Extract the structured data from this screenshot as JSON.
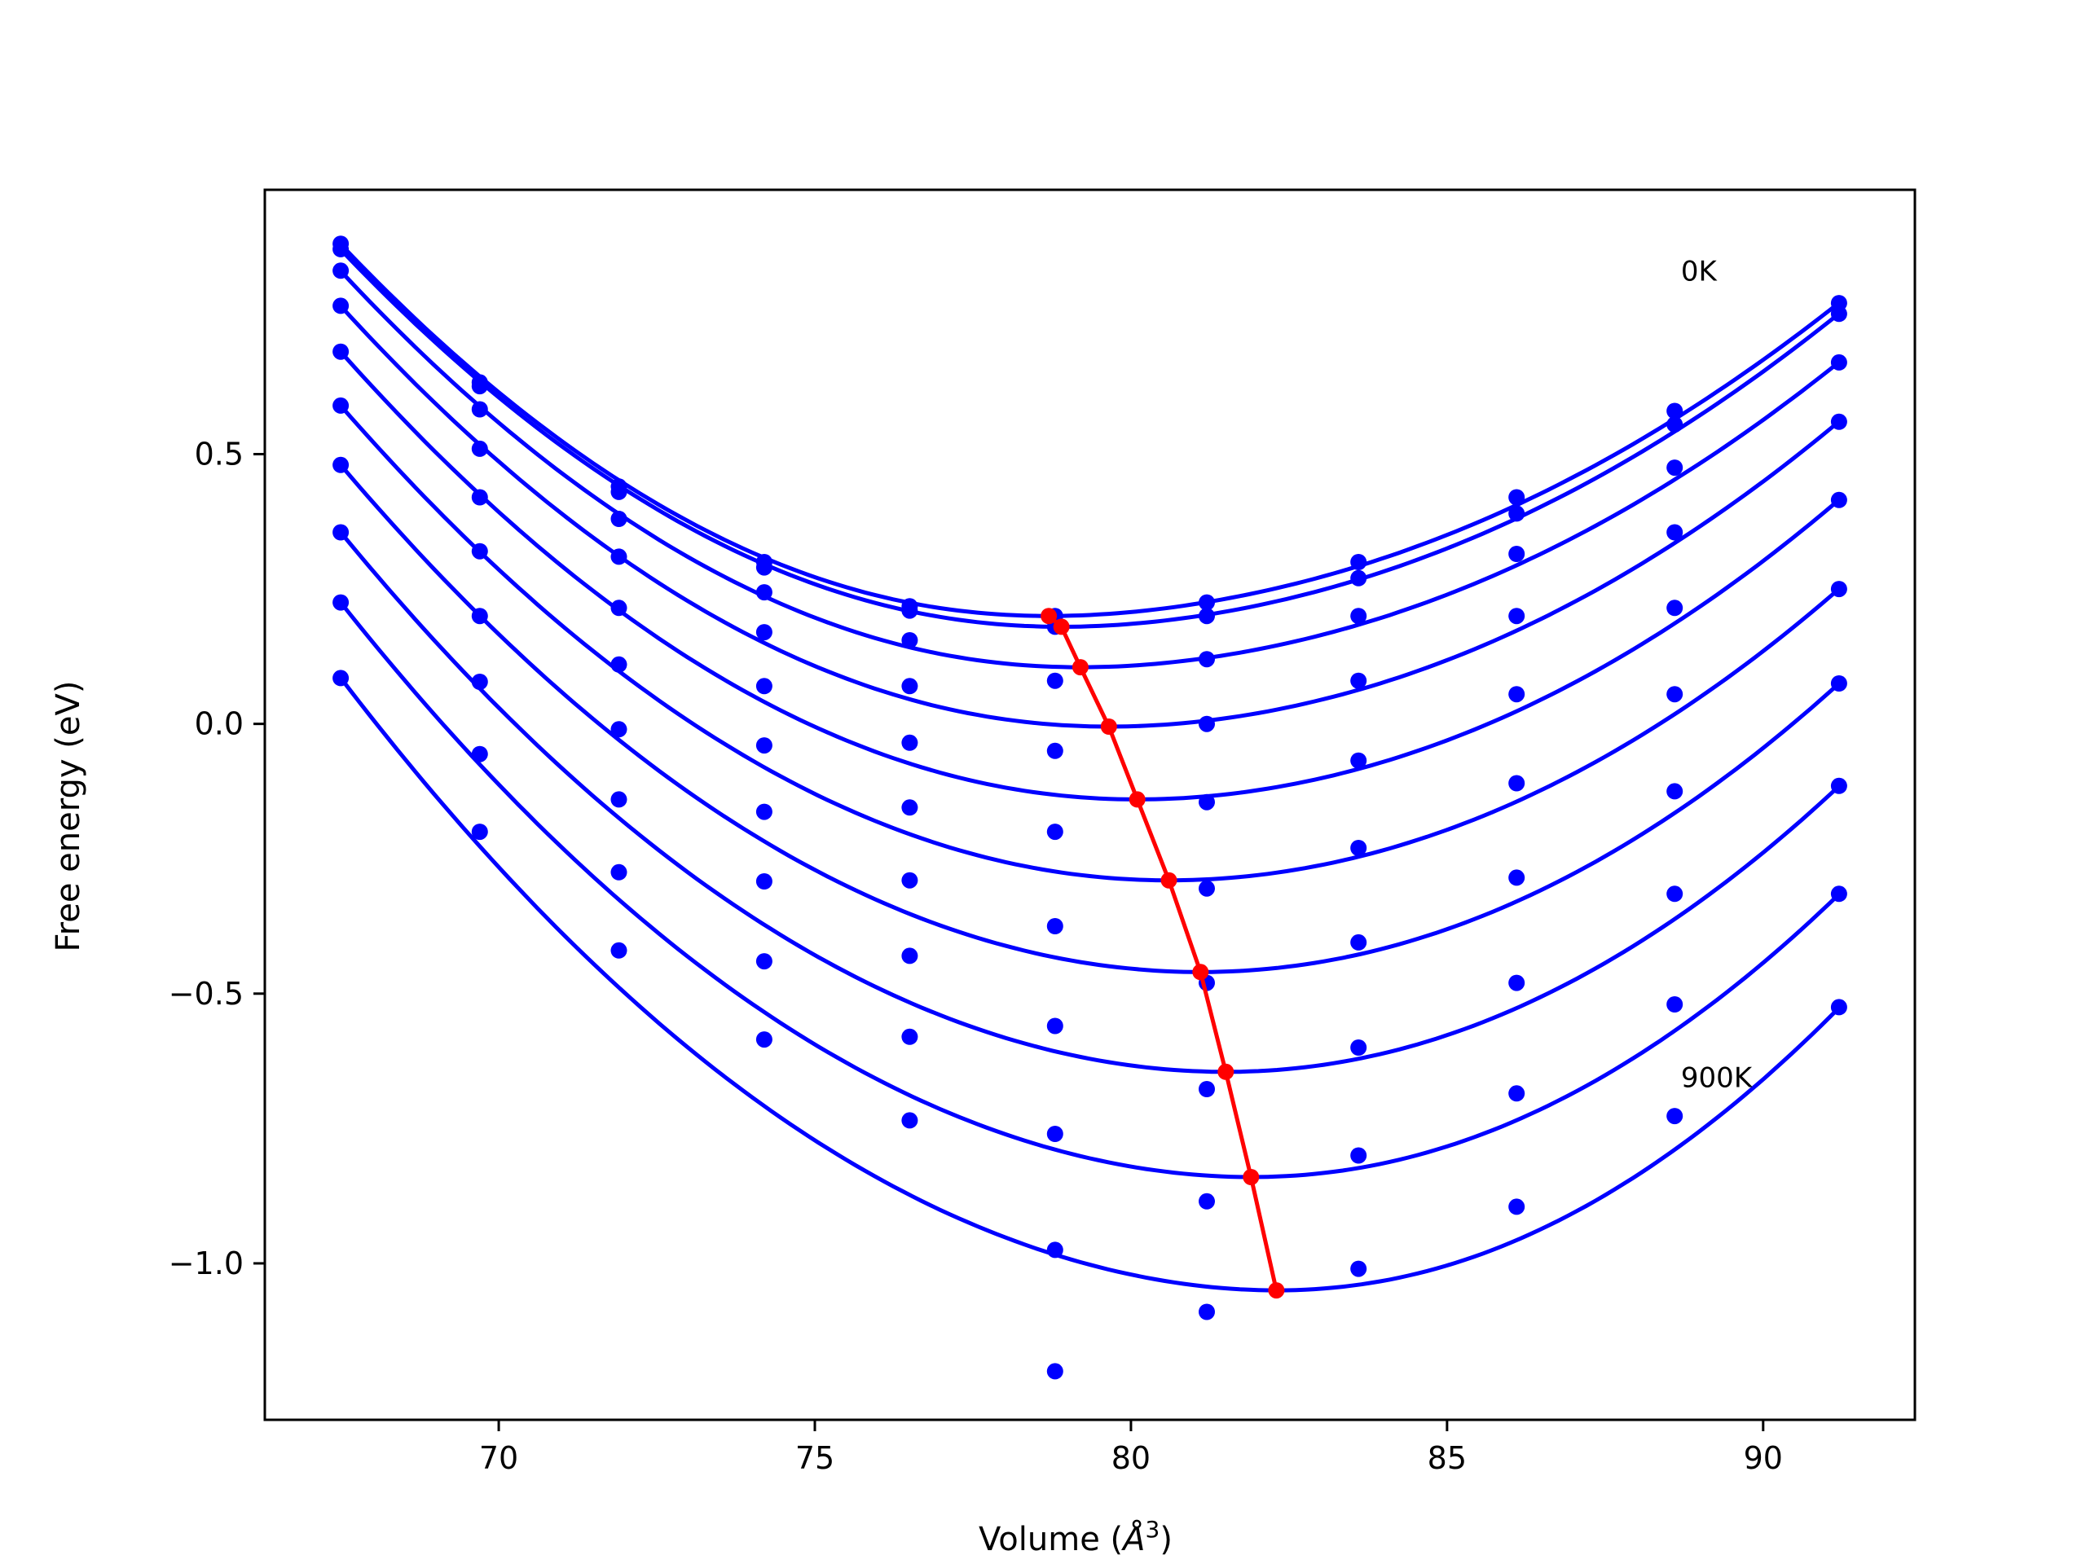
{
  "chart_data": {
    "type": "scatter",
    "title": "",
    "xlabel": "Volume (",
    "xlabel_symbol": "Å",
    "xlabel_superscript": "3",
    "xlabel_suffix": ")",
    "ylabel": "Free energy (eV)",
    "xlim": [
      66.3,
      92.4
    ],
    "ylim": [
      -1.29,
      0.99
    ],
    "xticks": [
      70,
      75,
      80,
      85,
      90
    ],
    "xtick_labels": [
      "70",
      "75",
      "80",
      "85",
      "90"
    ],
    "yticks": [
      0.5,
      0.0,
      -0.5,
      -1.0
    ],
    "ytick_labels": [
      "0.5",
      "0.0",
      "−0.5",
      "−1.0"
    ],
    "grid": false,
    "annotations": [
      {
        "text": "0K",
        "x": 88.7,
        "y": 0.84
      },
      {
        "text": "900K",
        "x": 88.7,
        "y": -0.655
      }
    ],
    "point_color": "#0000ff",
    "curve_color": "#0000ff",
    "equilibrium_color": "#ff0000",
    "volumes": [
      67.5,
      69.7,
      71.9,
      74.2,
      76.5,
      78.8,
      81.2,
      83.6,
      86.1,
      88.6,
      91.2
    ],
    "series": [
      {
        "points": [
          0.89,
          0.633,
          0.44,
          0.3,
          0.218,
          0.2,
          0.225,
          0.3,
          0.42,
          0.58,
          0.78
        ],
        "fit_min": [
          78.7,
          0.2
        ]
      },
      {
        "points": [
          0.88,
          0.626,
          0.43,
          0.29,
          0.21,
          0.18,
          0.2,
          0.27,
          0.39,
          0.555,
          0.76
        ],
        "fit_min": [
          78.9,
          0.18
        ]
      },
      {
        "points": [
          0.84,
          0.583,
          0.38,
          0.244,
          0.155,
          0.08,
          0.12,
          0.2,
          0.315,
          0.475,
          0.67
        ],
        "fit_min": [
          79.2,
          0.105
        ]
      },
      {
        "points": [
          0.775,
          0.51,
          0.31,
          0.17,
          0.07,
          -0.05,
          0.0,
          0.08,
          0.2,
          0.355,
          0.56
        ],
        "fit_min": [
          79.65,
          -0.005
        ]
      },
      {
        "points": [
          0.69,
          0.42,
          0.215,
          0.07,
          -0.035,
          -0.2,
          -0.145,
          -0.068,
          0.055,
          0.215,
          0.415
        ],
        "fit_min": [
          80.1,
          -0.14
        ]
      },
      {
        "points": [
          0.59,
          0.32,
          0.11,
          -0.04,
          -0.155,
          -0.375,
          -0.305,
          -0.23,
          -0.11,
          0.055,
          0.25
        ],
        "fit_min": [
          80.6,
          -0.29
        ]
      },
      {
        "points": [
          0.48,
          0.2,
          -0.01,
          -0.163,
          -0.29,
          -0.56,
          -0.48,
          -0.405,
          -0.285,
          -0.125,
          0.075
        ],
        "fit_min": [
          81.1,
          -0.46
        ]
      },
      {
        "points": [
          0.355,
          0.078,
          -0.14,
          -0.292,
          -0.43,
          -0.76,
          -0.677,
          -0.6,
          -0.48,
          -0.315,
          -0.115
        ],
        "fit_min": [
          81.5,
          -0.645
        ]
      },
      {
        "points": [
          0.225,
          -0.056,
          -0.275,
          -0.44,
          -0.58,
          -0.975,
          -0.885,
          -0.8,
          -0.685,
          -0.52,
          -0.315
        ],
        "fit_min": [
          81.9,
          -0.84
        ]
      },
      {
        "points": [
          0.085,
          -0.2,
          -0.42,
          -0.585,
          -0.735,
          -1.2,
          -1.09,
          -1.01,
          -0.895,
          -0.727,
          -0.525
        ],
        "fit_min": [
          82.3,
          -1.05
        ]
      }
    ],
    "equilibrium_line": {
      "x": [
        78.7,
        78.9,
        79.2,
        79.65,
        80.1,
        80.6,
        81.1,
        81.5,
        81.9,
        82.3
      ],
      "y": [
        0.2,
        0.18,
        0.105,
        -0.005,
        -0.14,
        -0.29,
        -0.46,
        -0.645,
        -0.84,
        -1.05
      ]
    }
  }
}
